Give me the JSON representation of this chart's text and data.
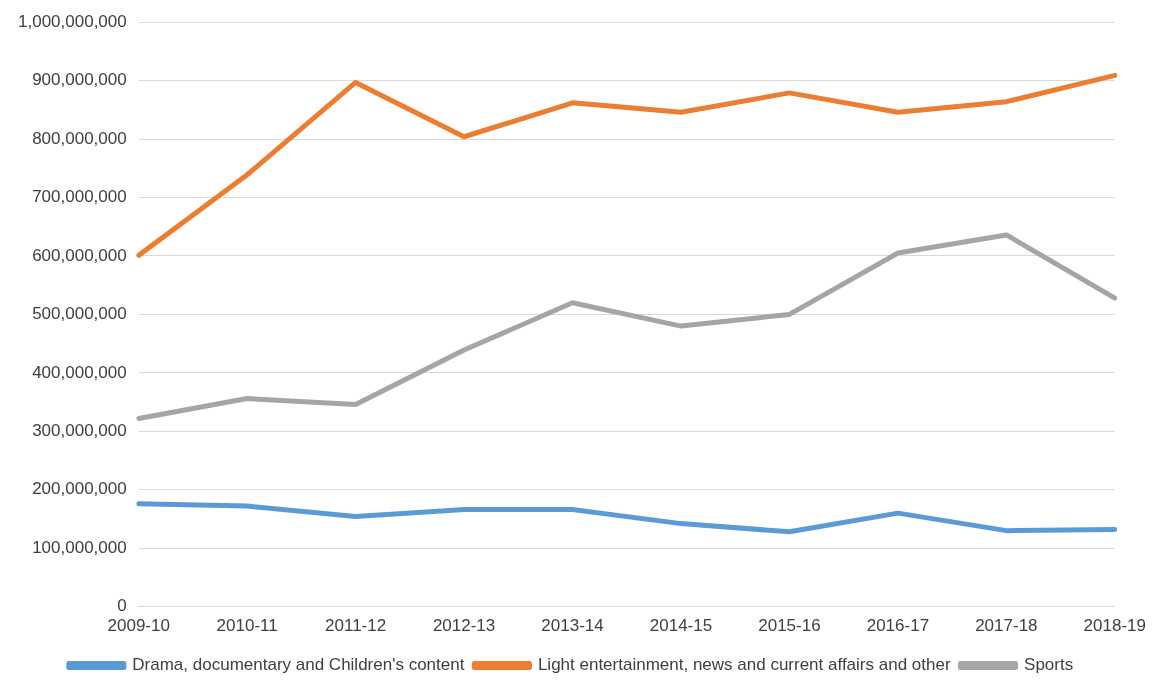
{
  "chart_data": {
    "type": "line",
    "categories": [
      "2009-10",
      "2010-11",
      "2011-12",
      "2012-13",
      "2013-14",
      "2014-15",
      "2015-16",
      "2016-17",
      "2017-18",
      "2018-19"
    ],
    "series": [
      {
        "name": "Drama, documentary and Children's content",
        "color": "#5b9bd5",
        "values": [
          176000000,
          172000000,
          154000000,
          166000000,
          166000000,
          142000000,
          128000000,
          160000000,
          130000000,
          132000000
        ]
      },
      {
        "name": "Light entertainment, news and current affairs and other",
        "color": "#ed7d31",
        "values": [
          601000000,
          739000000,
          897000000,
          804000000,
          862000000,
          846000000,
          879000000,
          846000000,
          864000000,
          909000000
        ]
      },
      {
        "name": "Sports",
        "color": "#a5a5a5",
        "values": [
          322000000,
          356000000,
          346000000,
          439000000,
          520000000,
          480000000,
          500000000,
          605000000,
          636000000,
          528000000
        ]
      }
    ],
    "ylim": [
      0,
      1000000000
    ],
    "yticks": [
      {
        "value": 0,
        "label": "0"
      },
      {
        "value": 100000000,
        "label": "100,000,000"
      },
      {
        "value": 200000000,
        "label": "200,000,000"
      },
      {
        "value": 300000000,
        "label": "300,000,000"
      },
      {
        "value": 400000000,
        "label": "400,000,000"
      },
      {
        "value": 500000000,
        "label": "500,000,000"
      },
      {
        "value": 600000000,
        "label": "600,000,000"
      },
      {
        "value": 700000000,
        "label": "700,000,000"
      },
      {
        "value": 800000000,
        "label": "800,000,000"
      },
      {
        "value": 900000000,
        "label": "900,000,000"
      },
      {
        "value": 1000000000,
        "label": "1,000,000,000"
      }
    ],
    "grid": "y",
    "legend": "bottom",
    "marker": "none",
    "line_style": "solid"
  }
}
